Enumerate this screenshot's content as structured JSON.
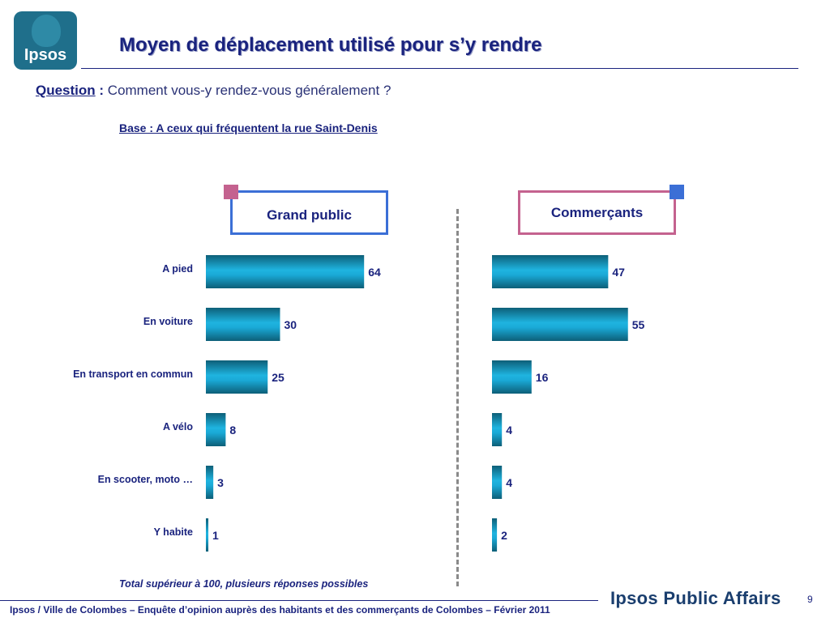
{
  "logo": {
    "text": "Ipsos"
  },
  "title": "Moyen de déplacement utilisé pour s’y rendre",
  "question": {
    "label": "Question",
    "colon": " :",
    "text": " Comment vous-y rendez-vous généralement ?"
  },
  "base": "Base : A ceux qui fréquentent la rue Saint-Denis",
  "panels": {
    "left": "Grand public",
    "right": "Commerçants"
  },
  "colors": {
    "bar": "#1aa9d6",
    "bar_dark": "#0d5f78",
    "text": "#1a237e",
    "pink": "#c4628f",
    "blue": "#3b6fd6"
  },
  "chart_data": [
    {
      "type": "bar",
      "orientation": "horizontal",
      "title": "Grand public",
      "categories": [
        "A pied",
        "En voiture",
        "En transport en commun",
        "A vélo",
        "En scooter, moto …",
        "Y habite"
      ],
      "values": [
        64,
        30,
        25,
        8,
        3,
        1
      ],
      "xlim": [
        0,
        100
      ]
    },
    {
      "type": "bar",
      "orientation": "horizontal",
      "title": "Commerçants",
      "categories": [
        "A pied",
        "En voiture",
        "En transport en commun",
        "A vélo",
        "En scooter, moto …",
        "Y habite"
      ],
      "values": [
        47,
        55,
        16,
        4,
        4,
        2
      ],
      "xlim": [
        0,
        100
      ]
    }
  ],
  "note": "Total supérieur à 100, plusieurs réponses possibles",
  "footer": "Ipsos / Ville de Colombes – Enquête d’opinion auprès des habitants et des commerçants de Colombes – Février 2011",
  "brand": "Ipsos Public Affairs",
  "page_number": "9"
}
